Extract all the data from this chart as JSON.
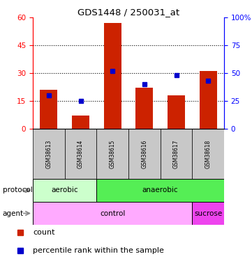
{
  "title": "GDS1448 / 250031_at",
  "samples": [
    "GSM38613",
    "GSM38614",
    "GSM38615",
    "GSM38616",
    "GSM38617",
    "GSM38618"
  ],
  "count_values": [
    21,
    7,
    57,
    22,
    18,
    31
  ],
  "percentile_values": [
    30,
    25,
    52,
    40,
    48,
    43
  ],
  "left_ylim": [
    0,
    60
  ],
  "right_ylim": [
    0,
    100
  ],
  "left_yticks": [
    0,
    15,
    30,
    45,
    60
  ],
  "right_yticks": [
    0,
    25,
    50,
    75,
    100
  ],
  "right_yticklabels": [
    "0",
    "25",
    "50",
    "75",
    "100%"
  ],
  "bar_color": "#cc2200",
  "marker_color": "#0000cc",
  "aerobic_color": "#ccffcc",
  "anaerobic_color": "#55ee55",
  "control_color": "#ffaaff",
  "sucrose_color": "#ee44ee",
  "protocol_label": "protocol",
  "agent_label": "agent",
  "protocol_aerobic_text": "aerobic",
  "protocol_anaerobic_text": "anaerobic",
  "agent_control_text": "control",
  "agent_sucrose_text": "sucrose",
  "legend_count_label": "count",
  "legend_percentile_label": "percentile rank within the sample",
  "xlabels_bg": "#c8c8c8",
  "figsize": [
    3.61,
    3.75
  ],
  "dpi": 100
}
